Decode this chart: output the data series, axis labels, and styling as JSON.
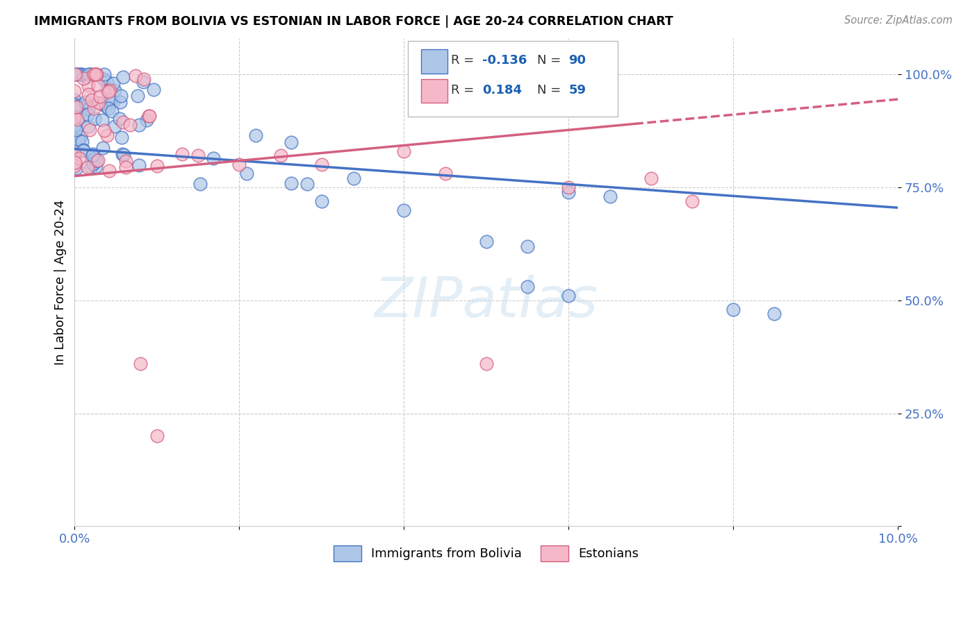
{
  "title": "IMMIGRANTS FROM BOLIVIA VS ESTONIAN IN LABOR FORCE | AGE 20-24 CORRELATION CHART",
  "source": "Source: ZipAtlas.com",
  "ylabel": "In Labor Force | Age 20-24",
  "xmin": 0.0,
  "xmax": 0.1,
  "ymin": 0.0,
  "ymax": 1.08,
  "R_bolivia": -0.136,
  "N_bolivia": 90,
  "R_estonian": 0.184,
  "N_estonian": 59,
  "color_bolivia": "#aec6e8",
  "color_estonian": "#f5b8c8",
  "color_bolivia_line": "#4472c4",
  "color_estonian_line": "#d45f80",
  "bolivia_trend_x0": 0.0,
  "bolivia_trend_y0": 0.835,
  "bolivia_trend_x1": 0.1,
  "bolivia_trend_y1": 0.705,
  "estonian_trend_x0": 0.0,
  "estonian_trend_y0": 0.775,
  "estonian_trend_x1": 0.1,
  "estonian_trend_y1": 0.945
}
